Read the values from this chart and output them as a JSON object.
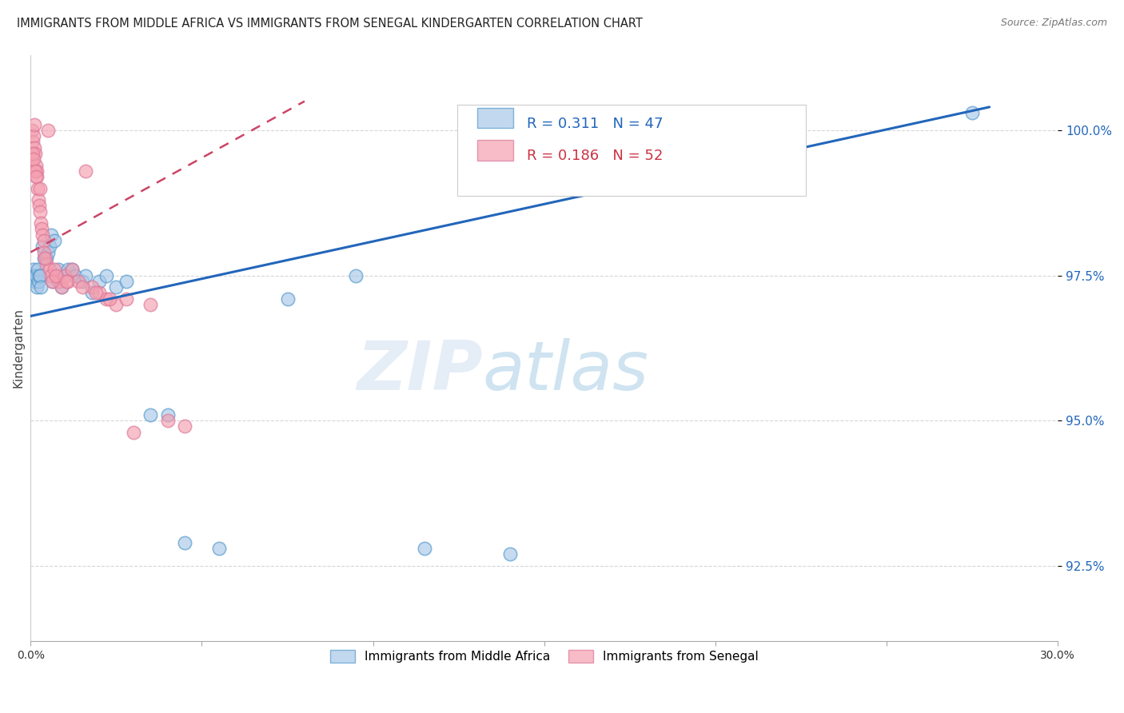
{
  "title": "IMMIGRANTS FROM MIDDLE AFRICA VS IMMIGRANTS FROM SENEGAL KINDERGARTEN CORRELATION CHART",
  "source": "Source: ZipAtlas.com",
  "ylabel": "Kindergarten",
  "ytick_values": [
    92.5,
    95.0,
    97.5,
    100.0
  ],
  "xlim": [
    0.0,
    30.0
  ],
  "ylim": [
    91.2,
    101.3
  ],
  "blue_color": "#a8c8e8",
  "pink_color": "#f4a0b0",
  "blue_edge_color": "#5599cc",
  "pink_edge_color": "#dd7799",
  "blue_line_color": "#2266bb",
  "pink_line_color": "#cc4466",
  "watermark_zip": "ZIP",
  "watermark_atlas": "atlas",
  "blue_scatter_x": [
    0.05,
    0.08,
    0.1,
    0.12,
    0.15,
    0.18,
    0.2,
    0.22,
    0.25,
    0.28,
    0.3,
    0.35,
    0.4,
    0.45,
    0.5,
    0.55,
    0.6,
    0.65,
    0.7,
    0.75,
    0.8,
    0.85,
    0.9,
    1.0,
    1.1,
    1.2,
    1.3,
    1.5,
    1.6,
    1.8,
    2.0,
    2.2,
    2.5,
    2.8,
    3.5,
    4.0,
    4.5,
    5.5,
    7.5,
    9.5,
    11.5,
    14.0,
    27.5
  ],
  "blue_scatter_y": [
    97.5,
    97.6,
    97.5,
    97.4,
    97.5,
    97.3,
    97.6,
    97.4,
    97.5,
    97.5,
    97.3,
    98.0,
    97.8,
    97.8,
    97.9,
    98.0,
    98.2,
    97.4,
    98.1,
    97.5,
    97.6,
    97.4,
    97.3,
    97.5,
    97.6,
    97.6,
    97.5,
    97.4,
    97.5,
    97.2,
    97.4,
    97.5,
    97.3,
    97.4,
    95.1,
    95.1,
    92.9,
    92.8,
    97.1,
    97.5,
    92.8,
    92.7,
    100.3
  ],
  "pink_scatter_x": [
    0.03,
    0.05,
    0.07,
    0.08,
    0.1,
    0.12,
    0.13,
    0.15,
    0.17,
    0.18,
    0.2,
    0.22,
    0.25,
    0.27,
    0.3,
    0.32,
    0.35,
    0.38,
    0.4,
    0.45,
    0.5,
    0.55,
    0.6,
    0.7,
    0.8,
    0.9,
    1.0,
    1.1,
    1.2,
    1.4,
    1.6,
    1.8,
    2.0,
    2.2,
    2.5,
    2.8,
    3.0,
    3.5,
    4.0,
    4.5,
    0.06,
    0.09,
    0.14,
    0.16,
    0.28,
    0.42,
    0.62,
    0.75,
    1.05,
    1.5,
    1.9,
    2.3
  ],
  "pink_scatter_y": [
    99.5,
    100.0,
    99.8,
    99.9,
    100.1,
    99.7,
    99.6,
    99.4,
    99.3,
    99.2,
    99.0,
    98.8,
    98.7,
    98.6,
    98.4,
    98.3,
    98.2,
    98.1,
    97.9,
    97.7,
    100.0,
    97.6,
    97.5,
    97.6,
    97.4,
    97.3,
    97.5,
    97.4,
    97.6,
    97.4,
    99.3,
    97.3,
    97.2,
    97.1,
    97.0,
    97.1,
    94.8,
    97.0,
    95.0,
    94.9,
    99.6,
    99.5,
    99.3,
    99.2,
    99.0,
    97.8,
    97.4,
    97.5,
    97.4,
    97.3,
    97.2,
    97.1
  ],
  "blue_line_x0": 0.0,
  "blue_line_y0": 96.8,
  "blue_line_x1": 28.0,
  "blue_line_y1": 100.4,
  "pink_line_x0": 0.0,
  "pink_line_y0": 97.9,
  "pink_line_x1": 8.0,
  "pink_line_y1": 100.5
}
